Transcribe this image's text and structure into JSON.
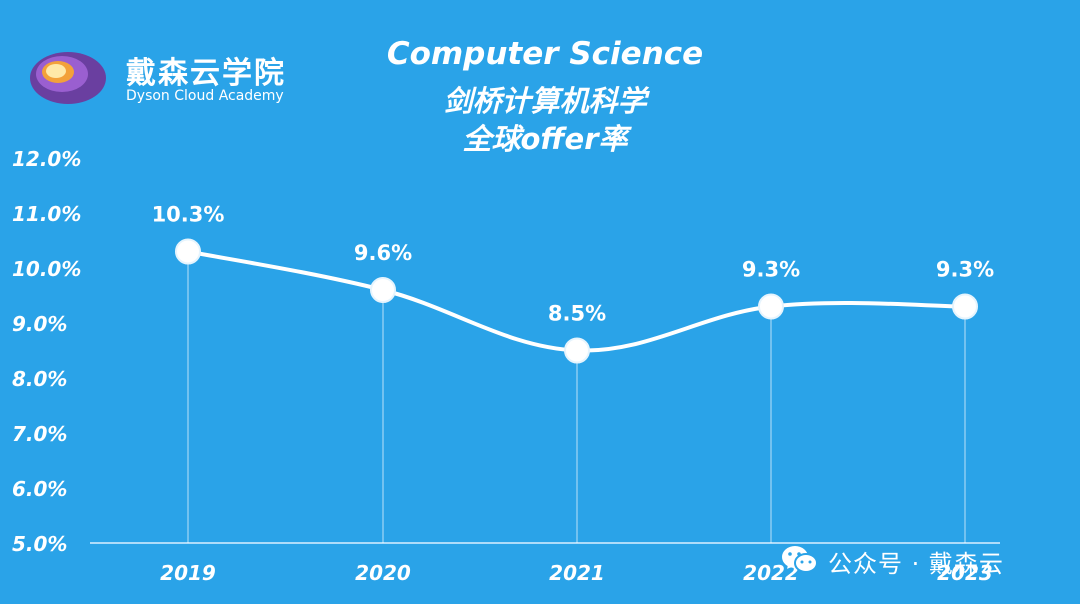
{
  "brand": {
    "name_cn": "戴森云学院",
    "name_en": "Dyson Cloud Academy"
  },
  "title": {
    "line1": "Computer  Science",
    "line2": "剑桥计算机科学",
    "line3": "全球offer率"
  },
  "footer": {
    "icon": "wechat-icon",
    "text": "公众号 · 戴森云"
  },
  "colors": {
    "background": "#2aa3e8",
    "line": "#ffffff",
    "text": "#ffffff"
  },
  "chart_data": {
    "type": "line",
    "categories": [
      "2019",
      "2020",
      "2021",
      "2022",
      "2023"
    ],
    "values": [
      10.3,
      9.6,
      8.5,
      9.3,
      9.3
    ],
    "data_labels": [
      "10.3%",
      "9.6%",
      "8.5%",
      "9.3%",
      "9.3%"
    ],
    "y_ticks": [
      "5.0%",
      "6.0%",
      "7.0%",
      "8.0%",
      "9.0%",
      "10.0%",
      "11.0%",
      "12.0%"
    ],
    "ylim": [
      5.0,
      12.0
    ],
    "smooth": true,
    "grid": false,
    "legend": "none"
  }
}
